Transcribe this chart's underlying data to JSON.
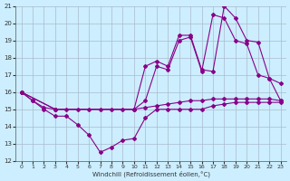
{
  "xlabel": "Windchill (Refroidissement éolien,°C)",
  "bg_color": "#cceeff",
  "line_color": "#880088",
  "grid_color": "#aabbcc",
  "xlim": [
    -0.5,
    23.5
  ],
  "ylim": [
    12,
    21
  ],
  "yticks": [
    12,
    13,
    14,
    15,
    16,
    17,
    18,
    19,
    20,
    21
  ],
  "xticks": [
    0,
    1,
    2,
    3,
    4,
    5,
    6,
    7,
    8,
    9,
    10,
    11,
    12,
    13,
    14,
    15,
    16,
    17,
    18,
    19,
    20,
    21,
    22,
    23
  ],
  "line1_x": [
    0,
    1,
    2,
    3,
    4,
    5,
    6,
    7,
    8,
    9,
    10,
    11,
    12,
    13,
    14,
    15,
    16,
    17,
    18,
    19,
    20,
    21,
    22,
    23
  ],
  "line1_y": [
    16.0,
    15.5,
    15.1,
    15.0,
    15.0,
    15.0,
    15.0,
    15.0,
    15.0,
    15.0,
    15.0,
    15.1,
    15.2,
    15.3,
    15.4,
    15.5,
    15.5,
    15.6,
    15.6,
    15.6,
    15.6,
    15.6,
    15.6,
    15.5
  ],
  "line2_x": [
    0,
    1,
    2,
    3,
    4,
    5,
    6,
    7,
    8,
    9,
    10,
    11,
    12,
    13,
    14,
    15,
    16,
    17,
    18,
    19,
    20,
    21,
    22,
    23
  ],
  "line2_y": [
    16.0,
    15.5,
    15.0,
    14.6,
    14.6,
    14.1,
    13.5,
    12.5,
    12.8,
    13.2,
    13.3,
    14.5,
    15.0,
    15.0,
    15.0,
    15.0,
    15.0,
    15.2,
    15.3,
    15.4,
    15.4,
    15.4,
    15.4,
    15.4
  ],
  "line3_x": [
    0,
    3,
    10,
    11,
    12,
    13,
    14,
    15,
    16,
    17,
    18,
    19,
    20,
    21,
    22,
    23
  ],
  "line3_y": [
    16.0,
    15.0,
    15.0,
    17.5,
    17.8,
    17.5,
    19.3,
    19.3,
    17.3,
    17.2,
    21.0,
    20.3,
    19.0,
    18.9,
    16.8,
    16.5
  ],
  "line4_x": [
    0,
    3,
    10,
    11,
    12,
    13,
    14,
    15,
    16,
    17,
    18,
    19,
    20,
    21,
    22,
    23
  ],
  "line4_y": [
    16.0,
    15.0,
    15.0,
    15.5,
    17.5,
    17.3,
    19.0,
    19.2,
    17.2,
    20.5,
    20.3,
    19.0,
    18.8,
    17.0,
    16.8,
    15.5
  ]
}
